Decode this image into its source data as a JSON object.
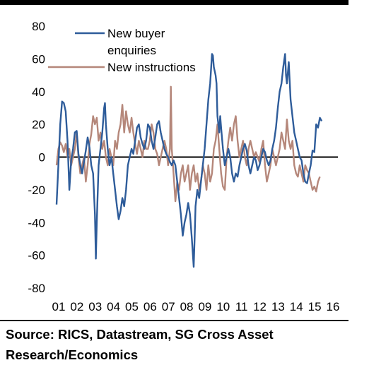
{
  "source": "Source: RICS, Datastream, SG Cross Asset Research/Economics",
  "chart_data": {
    "type": "line",
    "title": "",
    "xlabel": "",
    "ylabel": "",
    "ylim": [
      -80,
      80
    ],
    "yticks": [
      80,
      60,
      40,
      20,
      0,
      -20,
      -40,
      -60,
      -80
    ],
    "xtick_labels": [
      "01",
      "02",
      "03",
      "04",
      "05",
      "06",
      "07",
      "08",
      "09",
      "10",
      "11",
      "12",
      "13",
      "14",
      "15",
      "16"
    ],
    "xlim": [
      2001.0,
      2016.0
    ],
    "grid": false,
    "zero_line": true,
    "legend_position": "top-center",
    "series": [
      {
        "name": "New buyer enquiries",
        "color": "#2E5C9A",
        "points": [
          [
            2001.0,
            -29
          ],
          [
            2001.1,
            -5
          ],
          [
            2001.2,
            20
          ],
          [
            2001.3,
            34
          ],
          [
            2001.4,
            33
          ],
          [
            2001.5,
            28
          ],
          [
            2001.6,
            10
          ],
          [
            2001.7,
            -20
          ],
          [
            2001.8,
            -2
          ],
          [
            2001.9,
            5
          ],
          [
            2002.0,
            15
          ],
          [
            2002.1,
            16
          ],
          [
            2002.2,
            2
          ],
          [
            2002.3,
            -5
          ],
          [
            2002.4,
            -10
          ],
          [
            2002.5,
            -3
          ],
          [
            2002.6,
            4
          ],
          [
            2002.7,
            12
          ],
          [
            2002.8,
            6
          ],
          [
            2002.9,
            -5
          ],
          [
            2003.0,
            -10
          ],
          [
            2003.1,
            -35
          ],
          [
            2003.15,
            -62
          ],
          [
            2003.2,
            -40
          ],
          [
            2003.3,
            -5
          ],
          [
            2003.4,
            5
          ],
          [
            2003.5,
            15
          ],
          [
            2003.6,
            30
          ],
          [
            2003.65,
            33
          ],
          [
            2003.7,
            20
          ],
          [
            2003.8,
            5
          ],
          [
            2003.9,
            -5
          ],
          [
            2004.0,
            0
          ],
          [
            2004.1,
            -10
          ],
          [
            2004.2,
            -20
          ],
          [
            2004.3,
            -30
          ],
          [
            2004.4,
            -38
          ],
          [
            2004.5,
            -33
          ],
          [
            2004.6,
            -25
          ],
          [
            2004.7,
            -30
          ],
          [
            2004.8,
            -20
          ],
          [
            2004.9,
            -5
          ],
          [
            2005.0,
            0
          ],
          [
            2005.1,
            5
          ],
          [
            2005.2,
            2
          ],
          [
            2005.3,
            10
          ],
          [
            2005.4,
            18
          ],
          [
            2005.5,
            20
          ],
          [
            2005.6,
            12
          ],
          [
            2005.7,
            8
          ],
          [
            2005.8,
            5
          ],
          [
            2005.9,
            10
          ],
          [
            2006.0,
            20
          ],
          [
            2006.1,
            18
          ],
          [
            2006.2,
            10
          ],
          [
            2006.3,
            5
          ],
          [
            2006.4,
            12
          ],
          [
            2006.5,
            20
          ],
          [
            2006.6,
            22
          ],
          [
            2006.7,
            15
          ],
          [
            2006.8,
            10
          ],
          [
            2006.9,
            5
          ],
          [
            2007.0,
            2
          ],
          [
            2007.1,
            0
          ],
          [
            2007.2,
            -3
          ],
          [
            2007.3,
            -5
          ],
          [
            2007.4,
            -2
          ],
          [
            2007.5,
            -5
          ],
          [
            2007.6,
            -15
          ],
          [
            2007.7,
            -25
          ],
          [
            2007.8,
            -35
          ],
          [
            2007.9,
            -48
          ],
          [
            2008.0,
            -40
          ],
          [
            2008.1,
            -35
          ],
          [
            2008.2,
            -28
          ],
          [
            2008.3,
            -35
          ],
          [
            2008.4,
            -50
          ],
          [
            2008.5,
            -67
          ],
          [
            2008.55,
            -50
          ],
          [
            2008.6,
            -30
          ],
          [
            2008.7,
            -20
          ],
          [
            2008.8,
            -25
          ],
          [
            2008.9,
            -15
          ],
          [
            2009.0,
            -5
          ],
          [
            2009.1,
            5
          ],
          [
            2009.2,
            20
          ],
          [
            2009.3,
            35
          ],
          [
            2009.4,
            45
          ],
          [
            2009.5,
            63
          ],
          [
            2009.55,
            62
          ],
          [
            2009.6,
            55
          ],
          [
            2009.7,
            50
          ],
          [
            2009.75,
            45
          ],
          [
            2009.8,
            25
          ],
          [
            2009.9,
            15
          ],
          [
            2009.95,
            25
          ],
          [
            2010.0,
            18
          ],
          [
            2010.1,
            5
          ],
          [
            2010.2,
            -5
          ],
          [
            2010.3,
            0
          ],
          [
            2010.4,
            5
          ],
          [
            2010.5,
            0
          ],
          [
            2010.6,
            -10
          ],
          [
            2010.7,
            -15
          ],
          [
            2010.8,
            -10
          ],
          [
            2010.9,
            -12
          ],
          [
            2011.0,
            -5
          ],
          [
            2011.1,
            0
          ],
          [
            2011.2,
            5
          ],
          [
            2011.3,
            8
          ],
          [
            2011.4,
            4
          ],
          [
            2011.5,
            -5
          ],
          [
            2011.6,
            -10
          ],
          [
            2011.7,
            -5
          ],
          [
            2011.8,
            0
          ],
          [
            2011.9,
            -2
          ],
          [
            2012.0,
            -8
          ],
          [
            2012.1,
            -5
          ],
          [
            2012.2,
            0
          ],
          [
            2012.3,
            5
          ],
          [
            2012.4,
            3
          ],
          [
            2012.5,
            -2
          ],
          [
            2012.6,
            -5
          ],
          [
            2012.7,
            -2
          ],
          [
            2012.8,
            5
          ],
          [
            2012.9,
            10
          ],
          [
            2013.0,
            18
          ],
          [
            2013.1,
            30
          ],
          [
            2013.2,
            40
          ],
          [
            2013.3,
            45
          ],
          [
            2013.4,
            55
          ],
          [
            2013.5,
            63
          ],
          [
            2013.55,
            50
          ],
          [
            2013.6,
            45
          ],
          [
            2013.7,
            58
          ],
          [
            2013.8,
            35
          ],
          [
            2013.9,
            25
          ],
          [
            2014.0,
            15
          ],
          [
            2014.1,
            10
          ],
          [
            2014.2,
            5
          ],
          [
            2014.3,
            0
          ],
          [
            2014.4,
            -2
          ],
          [
            2014.5,
            -10
          ],
          [
            2014.6,
            -15
          ],
          [
            2014.7,
            -16
          ],
          [
            2014.8,
            -10
          ],
          [
            2014.9,
            -5
          ],
          [
            2015.0,
            4
          ],
          [
            2015.1,
            3
          ],
          [
            2015.2,
            20
          ],
          [
            2015.3,
            18
          ],
          [
            2015.4,
            24
          ],
          [
            2015.5,
            22
          ]
        ]
      },
      {
        "name": "New instructions",
        "color": "#B5877A",
        "points": [
          [
            2001.0,
            -5
          ],
          [
            2001.1,
            5
          ],
          [
            2001.2,
            9
          ],
          [
            2001.3,
            7
          ],
          [
            2001.4,
            3
          ],
          [
            2001.5,
            8
          ],
          [
            2001.6,
            0
          ],
          [
            2001.7,
            5
          ],
          [
            2001.8,
            -5
          ],
          [
            2001.9,
            0
          ],
          [
            2002.0,
            5
          ],
          [
            2002.1,
            15
          ],
          [
            2002.2,
            0
          ],
          [
            2002.3,
            -10
          ],
          [
            2002.4,
            -5
          ],
          [
            2002.5,
            0
          ],
          [
            2002.6,
            -15
          ],
          [
            2002.7,
            -5
          ],
          [
            2002.8,
            8
          ],
          [
            2002.9,
            14
          ],
          [
            2003.0,
            25
          ],
          [
            2003.1,
            20
          ],
          [
            2003.2,
            24
          ],
          [
            2003.3,
            10
          ],
          [
            2003.4,
            15
          ],
          [
            2003.5,
            5
          ],
          [
            2003.6,
            10
          ],
          [
            2003.7,
            0
          ],
          [
            2003.8,
            -5
          ],
          [
            2003.9,
            5
          ],
          [
            2004.0,
            0
          ],
          [
            2004.1,
            -5
          ],
          [
            2004.2,
            10
          ],
          [
            2004.3,
            5
          ],
          [
            2004.4,
            15
          ],
          [
            2004.5,
            20
          ],
          [
            2004.6,
            32
          ],
          [
            2004.7,
            15
          ],
          [
            2004.8,
            28
          ],
          [
            2004.9,
            20
          ],
          [
            2005.0,
            15
          ],
          [
            2005.1,
            24
          ],
          [
            2005.2,
            15
          ],
          [
            2005.3,
            8
          ],
          [
            2005.4,
            2
          ],
          [
            2005.5,
            10
          ],
          [
            2005.6,
            5
          ],
          [
            2005.7,
            0
          ],
          [
            2005.8,
            10
          ],
          [
            2005.9,
            5
          ],
          [
            2006.0,
            5
          ],
          [
            2006.1,
            10
          ],
          [
            2006.2,
            20
          ],
          [
            2006.3,
            15
          ],
          [
            2006.4,
            5
          ],
          [
            2006.5,
            2
          ],
          [
            2006.6,
            -5
          ],
          [
            2006.7,
            0
          ],
          [
            2006.8,
            5
          ],
          [
            2006.9,
            10
          ],
          [
            2007.0,
            5
          ],
          [
            2007.1,
            -5
          ],
          [
            2007.2,
            5
          ],
          [
            2007.25,
            43
          ],
          [
            2007.3,
            5
          ],
          [
            2007.4,
            -10
          ],
          [
            2007.5,
            -27
          ],
          [
            2007.6,
            -15
          ],
          [
            2007.7,
            -20
          ],
          [
            2007.8,
            -10
          ],
          [
            2007.9,
            -5
          ],
          [
            2008.0,
            -15
          ],
          [
            2008.1,
            -10
          ],
          [
            2008.2,
            -5
          ],
          [
            2008.3,
            -20
          ],
          [
            2008.4,
            -10
          ],
          [
            2008.5,
            -5
          ],
          [
            2008.6,
            -15
          ],
          [
            2008.7,
            -10
          ],
          [
            2008.8,
            -20
          ],
          [
            2008.9,
            -15
          ],
          [
            2009.0,
            -5
          ],
          [
            2009.1,
            -10
          ],
          [
            2009.2,
            -20
          ],
          [
            2009.3,
            -5
          ],
          [
            2009.4,
            -15
          ],
          [
            2009.5,
            -10
          ],
          [
            2009.6,
            5
          ],
          [
            2009.7,
            10
          ],
          [
            2009.8,
            20
          ],
          [
            2009.9,
            5
          ],
          [
            2010.0,
            -10
          ],
          [
            2010.1,
            -18
          ],
          [
            2010.2,
            -20
          ],
          [
            2010.3,
            0
          ],
          [
            2010.4,
            10
          ],
          [
            2010.5,
            18
          ],
          [
            2010.6,
            10
          ],
          [
            2010.7,
            20
          ],
          [
            2010.8,
            25
          ],
          [
            2010.9,
            10
          ],
          [
            2011.0,
            0
          ],
          [
            2011.1,
            5
          ],
          [
            2011.2,
            10
          ],
          [
            2011.3,
            0
          ],
          [
            2011.4,
            -5
          ],
          [
            2011.5,
            5
          ],
          [
            2011.6,
            10
          ],
          [
            2011.7,
            5
          ],
          [
            2011.8,
            0
          ],
          [
            2011.9,
            3
          ],
          [
            2012.0,
            0
          ],
          [
            2012.1,
            -3
          ],
          [
            2012.2,
            5
          ],
          [
            2012.3,
            10
          ],
          [
            2012.4,
            -5
          ],
          [
            2012.5,
            -15
          ],
          [
            2012.6,
            -10
          ],
          [
            2012.7,
            -5
          ],
          [
            2012.8,
            5
          ],
          [
            2012.9,
            0
          ],
          [
            2013.0,
            -5
          ],
          [
            2013.1,
            0
          ],
          [
            2013.2,
            5
          ],
          [
            2013.3,
            15
          ],
          [
            2013.4,
            10
          ],
          [
            2013.5,
            5
          ],
          [
            2013.6,
            23
          ],
          [
            2013.7,
            10
          ],
          [
            2013.8,
            5
          ],
          [
            2013.9,
            10
          ],
          [
            2014.0,
            -5
          ],
          [
            2014.1,
            -10
          ],
          [
            2014.2,
            -12
          ],
          [
            2014.3,
            -5
          ],
          [
            2014.4,
            -10
          ],
          [
            2014.5,
            -15
          ],
          [
            2014.6,
            -5
          ],
          [
            2014.7,
            -8
          ],
          [
            2014.8,
            -10
          ],
          [
            2014.9,
            -15
          ],
          [
            2015.0,
            -20
          ],
          [
            2015.1,
            -18
          ],
          [
            2015.2,
            -21
          ],
          [
            2015.3,
            -15
          ],
          [
            2015.4,
            -12
          ]
        ]
      }
    ]
  }
}
